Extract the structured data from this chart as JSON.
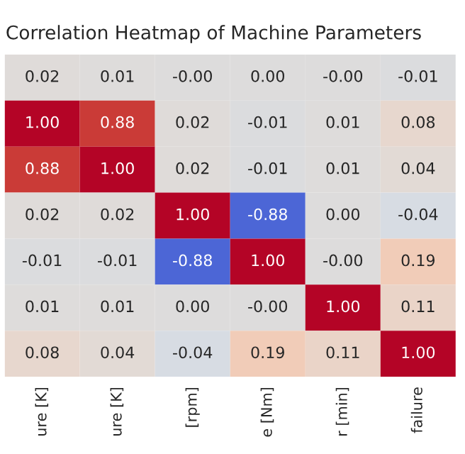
{
  "chart_data": {
    "type": "heatmap",
    "title": "Correlation Heatmap of Machine Parameters",
    "categories": [
      "ure [K]",
      "ure [K]",
      "[rpm]",
      "e [Nm]",
      "r [min]",
      "failure"
    ],
    "y_categories": [
      null,
      null,
      null,
      null,
      null,
      null,
      null
    ],
    "cells": [
      [
        0.02,
        0.01,
        -0.0,
        0.0,
        -0.0,
        -0.01
      ],
      [
        1.0,
        0.88,
        0.02,
        -0.01,
        0.01,
        0.08
      ],
      [
        0.88,
        1.0,
        0.02,
        -0.01,
        0.01,
        0.04
      ],
      [
        0.02,
        0.02,
        1.0,
        -0.88,
        0.0,
        -0.04
      ],
      [
        -0.01,
        -0.01,
        -0.88,
        1.0,
        -0.0,
        0.19
      ],
      [
        0.01,
        0.01,
        0.0,
        -0.0,
        1.0,
        0.11
      ],
      [
        0.08,
        0.04,
        -0.04,
        0.19,
        0.11,
        1.0
      ]
    ],
    "cell_labels": [
      [
        "0.02",
        "0.01",
        "-0.00",
        "0.00",
        "-0.00",
        "-0.01"
      ],
      [
        "1.00",
        "0.88",
        "0.02",
        "-0.01",
        "0.01",
        "0.08"
      ],
      [
        "0.88",
        "1.00",
        "0.02",
        "-0.01",
        "0.01",
        "0.04"
      ],
      [
        "0.02",
        "0.02",
        "1.00",
        "-0.88",
        "0.00",
        "-0.04"
      ],
      [
        "-0.01",
        "-0.01",
        "-0.88",
        "1.00",
        "-0.00",
        "0.19"
      ],
      [
        "0.01",
        "0.01",
        "0.00",
        "-0.00",
        "1.00",
        "0.11"
      ],
      [
        "0.08",
        "0.04",
        "-0.04",
        "0.19",
        "0.11",
        "1.00"
      ]
    ]
  }
}
